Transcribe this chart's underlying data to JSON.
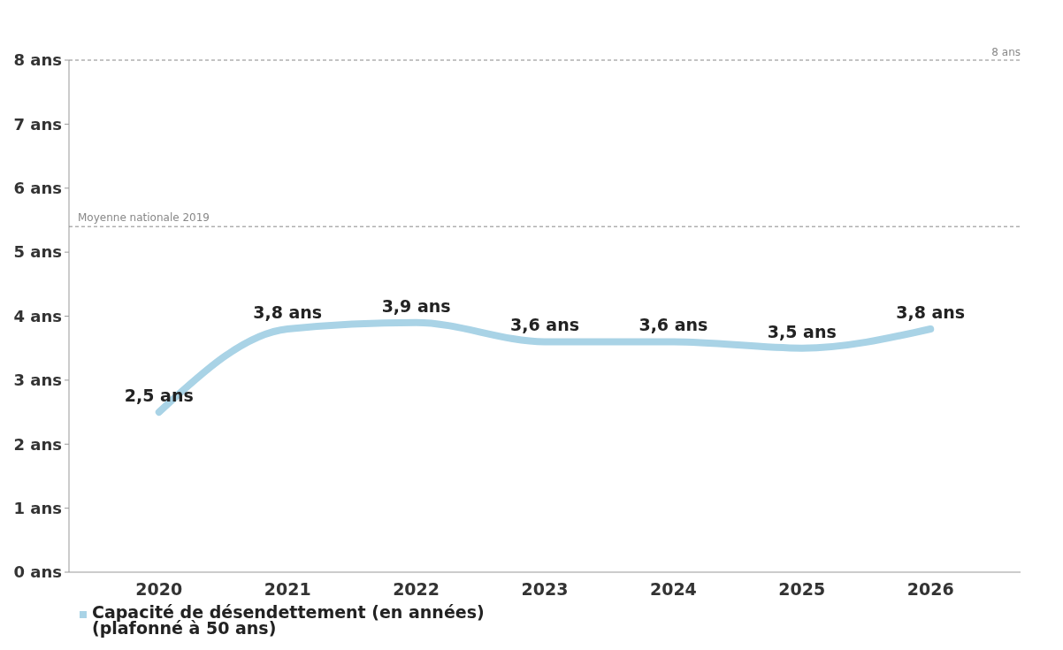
{
  "chart_data": {
    "type": "line",
    "categories": [
      "2020",
      "2021",
      "2022",
      "2023",
      "2024",
      "2025",
      "2026"
    ],
    "series": [
      {
        "name": "Capacité de désendettement (en années)\n(plafonné à 50 ans)",
        "color": "#a9d3e6",
        "values": [
          2.5,
          3.8,
          3.9,
          3.6,
          3.6,
          3.5,
          3.8
        ],
        "value_labels": [
          "2,5 ans",
          "3,8 ans",
          "3,9 ans",
          "3,6 ans",
          "3,6 ans",
          "3,5 ans",
          "3,8 ans"
        ]
      }
    ],
    "ylim": [
      0,
      8
    ],
    "yticks": [
      {
        "value": 0,
        "label": "0 ans"
      },
      {
        "value": 1,
        "label": "1 ans"
      },
      {
        "value": 2,
        "label": "2 ans"
      },
      {
        "value": 3,
        "label": "3 ans"
      },
      {
        "value": 4,
        "label": "4 ans"
      },
      {
        "value": 5,
        "label": "5 ans"
      },
      {
        "value": 6,
        "label": "6 ans"
      },
      {
        "value": 7,
        "label": "7 ans"
      },
      {
        "value": 8,
        "label": "8 ans"
      }
    ],
    "ref_lines": [
      {
        "axis": "y",
        "value": 8,
        "label": "8 ans",
        "color": "#888888",
        "line_style": "dashed"
      },
      {
        "axis": "y",
        "value": 5.4,
        "label": "Moyenne nationale 2019",
        "color": "#888888",
        "line_style": "dashed"
      }
    ],
    "grid": false,
    "legend": "bottom left",
    "marker": "none",
    "line_style": "solid"
  }
}
